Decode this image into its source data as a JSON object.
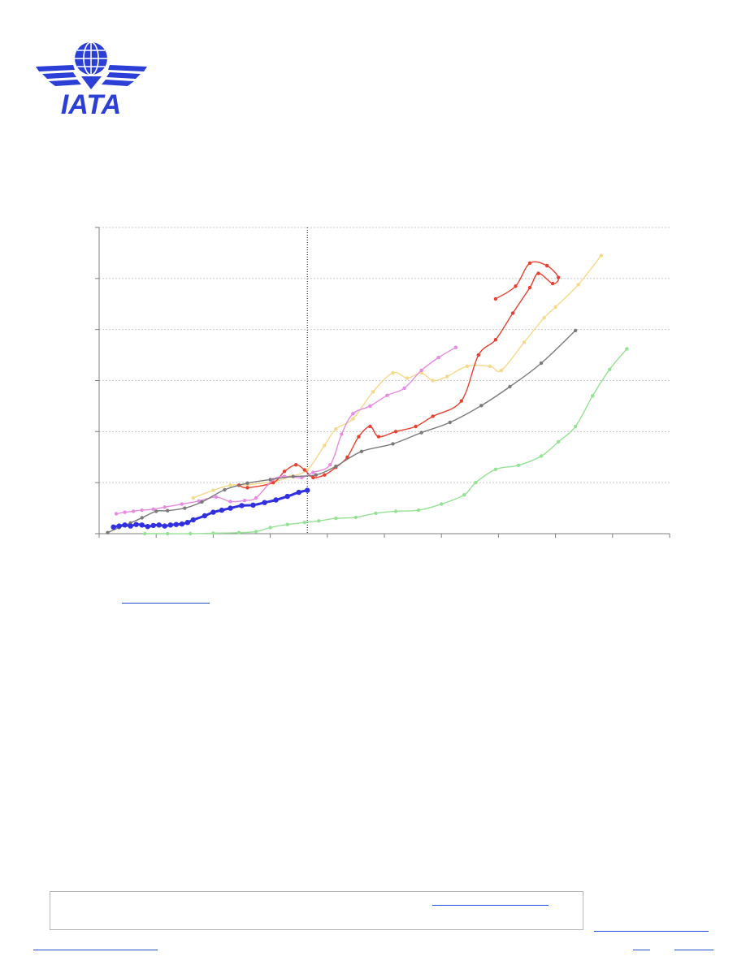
{
  "logo": {
    "text": "IATA",
    "icon": "globe-wings-icon",
    "color": "#2b3fd6"
  },
  "colors": {
    "grid": "#c8c8c8",
    "axis": "#7f7f7f",
    "link": "#1f4fd8",
    "divider": "#000000"
  },
  "chart_data": {
    "type": "line",
    "title": "",
    "xlabel": "",
    "ylabel": "",
    "x_ticks": 10,
    "y_ticks": 6,
    "grid": true,
    "divider_at_tick": 3.65,
    "series": [
      {
        "color": "#3030e0",
        "marker_size": 3.2,
        "stroke_width": 3,
        "points": [
          [
            0.25,
            0.13
          ],
          [
            0.35,
            0.15
          ],
          [
            0.45,
            0.17
          ],
          [
            0.55,
            0.15
          ],
          [
            0.65,
            0.18
          ],
          [
            0.75,
            0.17
          ],
          [
            0.85,
            0.14
          ],
          [
            0.95,
            0.16
          ],
          [
            1.05,
            0.17
          ],
          [
            1.15,
            0.15
          ],
          [
            1.25,
            0.17
          ],
          [
            1.35,
            0.18
          ],
          [
            1.45,
            0.19
          ],
          [
            1.55,
            0.22
          ],
          [
            1.65,
            0.27
          ],
          [
            1.85,
            0.35
          ],
          [
            2.0,
            0.42
          ],
          [
            2.15,
            0.46
          ],
          [
            2.3,
            0.5
          ],
          [
            2.5,
            0.55
          ],
          [
            2.7,
            0.56
          ],
          [
            2.9,
            0.61
          ],
          [
            3.1,
            0.66
          ],
          [
            3.3,
            0.73
          ],
          [
            3.5,
            0.81
          ],
          [
            3.65,
            0.85
          ]
        ]
      },
      {
        "color": "#7a7a7a",
        "marker_size": 2.2,
        "stroke_width": 1.4,
        "points": [
          [
            0.15,
            0.02
          ],
          [
            0.35,
            0.12
          ],
          [
            0.55,
            0.21
          ],
          [
            0.75,
            0.31
          ],
          [
            1.0,
            0.44
          ],
          [
            1.2,
            0.45
          ],
          [
            1.5,
            0.5
          ],
          [
            1.8,
            0.62
          ],
          [
            2.2,
            0.86
          ],
          [
            2.6,
            0.99
          ],
          [
            3.0,
            1.06
          ],
          [
            3.4,
            1.12
          ],
          [
            3.8,
            1.15
          ],
          [
            4.15,
            1.32
          ],
          [
            4.6,
            1.61
          ],
          [
            5.15,
            1.76
          ],
          [
            5.65,
            1.98
          ],
          [
            6.15,
            2.18
          ],
          [
            6.7,
            2.51
          ],
          [
            7.2,
            2.88
          ],
          [
            7.75,
            3.34
          ],
          [
            8.35,
            3.98
          ]
        ]
      },
      {
        "color": "#f5d98a",
        "marker_size": 2.2,
        "stroke_width": 1.4,
        "points": [
          [
            1.65,
            0.7
          ],
          [
            2.0,
            0.85
          ],
          [
            2.3,
            0.95
          ],
          [
            2.6,
            0.96
          ],
          [
            3.1,
            1.03
          ],
          [
            3.35,
            1.12
          ],
          [
            3.65,
            1.25
          ],
          [
            3.95,
            1.73
          ],
          [
            4.15,
            2.05
          ],
          [
            4.45,
            2.25
          ],
          [
            4.8,
            2.78
          ],
          [
            5.15,
            3.15
          ],
          [
            5.4,
            3.05
          ],
          [
            5.65,
            3.15
          ],
          [
            5.85,
            3.0
          ],
          [
            6.1,
            3.08
          ],
          [
            6.45,
            3.28
          ],
          [
            6.85,
            3.28
          ],
          [
            7.05,
            3.2
          ],
          [
            7.45,
            3.75
          ],
          [
            7.8,
            4.23
          ],
          [
            8.0,
            4.44
          ],
          [
            8.4,
            4.88
          ],
          [
            8.8,
            5.45
          ]
        ]
      },
      {
        "color": "#e84030",
        "marker_size": 2.2,
        "stroke_width": 1.4,
        "points": [
          [
            2.45,
            0.95
          ],
          [
            2.6,
            0.9
          ],
          [
            3.05,
            1.0
          ],
          [
            3.25,
            1.22
          ],
          [
            3.45,
            1.35
          ],
          [
            3.6,
            1.25
          ],
          [
            3.75,
            1.1
          ],
          [
            3.95,
            1.15
          ],
          [
            4.15,
            1.3
          ],
          [
            4.35,
            1.5
          ],
          [
            4.55,
            1.9
          ],
          [
            4.75,
            2.1
          ],
          [
            4.9,
            1.9
          ],
          [
            5.2,
            2.0
          ],
          [
            5.55,
            2.1
          ],
          [
            5.85,
            2.3
          ],
          [
            6.35,
            2.6
          ],
          [
            6.65,
            3.5
          ],
          [
            6.95,
            3.8
          ],
          [
            7.25,
            4.32
          ],
          [
            7.55,
            4.82
          ],
          [
            7.7,
            5.1
          ],
          [
            7.95,
            4.9
          ],
          [
            8.05,
            5.02
          ],
          [
            7.85,
            5.25
          ],
          [
            7.55,
            5.3
          ],
          [
            7.3,
            4.85
          ],
          [
            6.95,
            4.6
          ]
        ]
      },
      {
        "color": "#e58be0",
        "marker_size": 2.2,
        "stroke_width": 1.4,
        "points": [
          [
            0.3,
            0.39
          ],
          [
            0.45,
            0.42
          ],
          [
            0.6,
            0.44
          ],
          [
            0.75,
            0.46
          ],
          [
            0.95,
            0.48
          ],
          [
            1.15,
            0.52
          ],
          [
            1.45,
            0.58
          ],
          [
            1.75,
            0.64
          ],
          [
            2.05,
            0.72
          ],
          [
            2.3,
            0.63
          ],
          [
            2.55,
            0.65
          ],
          [
            2.75,
            0.7
          ],
          [
            3.05,
            1.06
          ],
          [
            3.25,
            1.12
          ],
          [
            3.55,
            1.1
          ],
          [
            3.75,
            1.2
          ],
          [
            4.05,
            1.35
          ],
          [
            4.25,
            1.95
          ],
          [
            4.45,
            2.35
          ],
          [
            4.75,
            2.5
          ],
          [
            5.05,
            2.71
          ],
          [
            5.35,
            2.85
          ],
          [
            5.65,
            3.2
          ],
          [
            5.95,
            3.45
          ],
          [
            6.25,
            3.65
          ]
        ]
      },
      {
        "color": "#94e294",
        "marker_size": 2.2,
        "stroke_width": 1.4,
        "points": [
          [
            0.8,
            0.0
          ],
          [
            1.2,
            0.0
          ],
          [
            1.6,
            0.0
          ],
          [
            2.0,
            0.01
          ],
          [
            2.45,
            0.02
          ],
          [
            2.75,
            0.04
          ],
          [
            3.0,
            0.12
          ],
          [
            3.3,
            0.18
          ],
          [
            3.6,
            0.22
          ],
          [
            3.85,
            0.25
          ],
          [
            4.15,
            0.3
          ],
          [
            4.5,
            0.32
          ],
          [
            4.85,
            0.4
          ],
          [
            5.2,
            0.44
          ],
          [
            5.6,
            0.46
          ],
          [
            6.0,
            0.58
          ],
          [
            6.4,
            0.76
          ],
          [
            6.6,
            1.0
          ],
          [
            6.95,
            1.26
          ],
          [
            7.35,
            1.34
          ],
          [
            7.75,
            1.52
          ],
          [
            8.05,
            1.8
          ],
          [
            8.35,
            2.1
          ],
          [
            8.65,
            2.7
          ],
          [
            8.95,
            3.22
          ],
          [
            9.25,
            3.62
          ]
        ]
      }
    ]
  },
  "footer": {
    "box_link_color": "#1f4fd8"
  }
}
